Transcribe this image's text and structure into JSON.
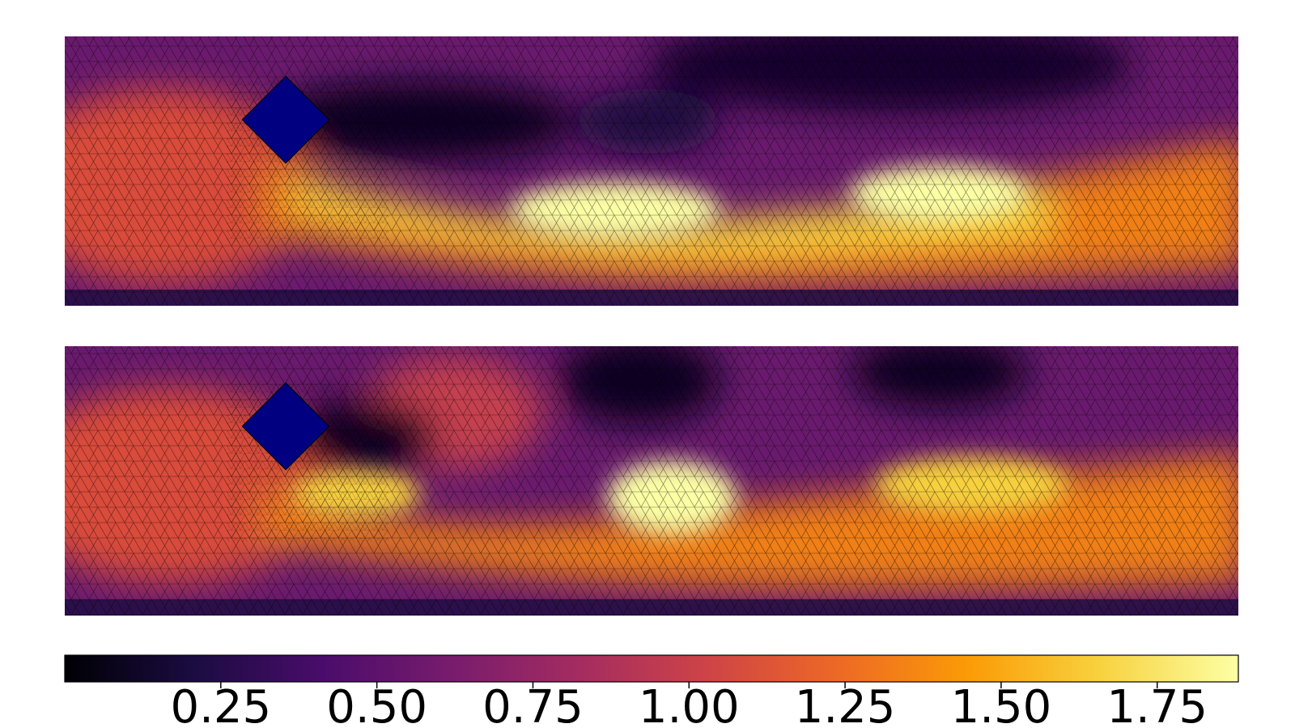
{
  "chart_data": [
    {
      "type": "heatmap",
      "colormap": "inferno",
      "mesh": "triangular",
      "grid": false,
      "obstacle": {
        "shape": "square",
        "rotation_deg": 45,
        "color": "#000080"
      },
      "description_values": {
        "jet_peak_x_fraction": [
          0.48,
          0.8
        ],
        "jet_peak_level": 1.85
      }
    },
    {
      "type": "heatmap",
      "colormap": "inferno",
      "mesh": "triangular",
      "grid": false,
      "obstacle": {
        "shape": "square",
        "rotation_deg": 45,
        "color": "#000080"
      },
      "description_values": {
        "jet_peak_x_fraction": [
          0.52,
          0.78
        ],
        "jet_peak_level": 1.8
      }
    }
  ],
  "colorbar": {
    "orientation": "horizontal",
    "colormap": "inferno",
    "vmin": 0.0,
    "vmax": 1.88,
    "ticks": [
      0.25,
      0.5,
      0.75,
      1.0,
      1.25,
      1.5,
      1.75
    ],
    "tick_labels": [
      "0.25",
      "0.50",
      "0.75",
      "1.00",
      "1.25",
      "1.50",
      "1.75"
    ],
    "colors": [
      "#000004",
      "#1b0c41",
      "#4a0c6b",
      "#781c6d",
      "#a52c60",
      "#cf4446",
      "#ed6925",
      "#fb9b06",
      "#f7d13d",
      "#fcffa4"
    ]
  }
}
